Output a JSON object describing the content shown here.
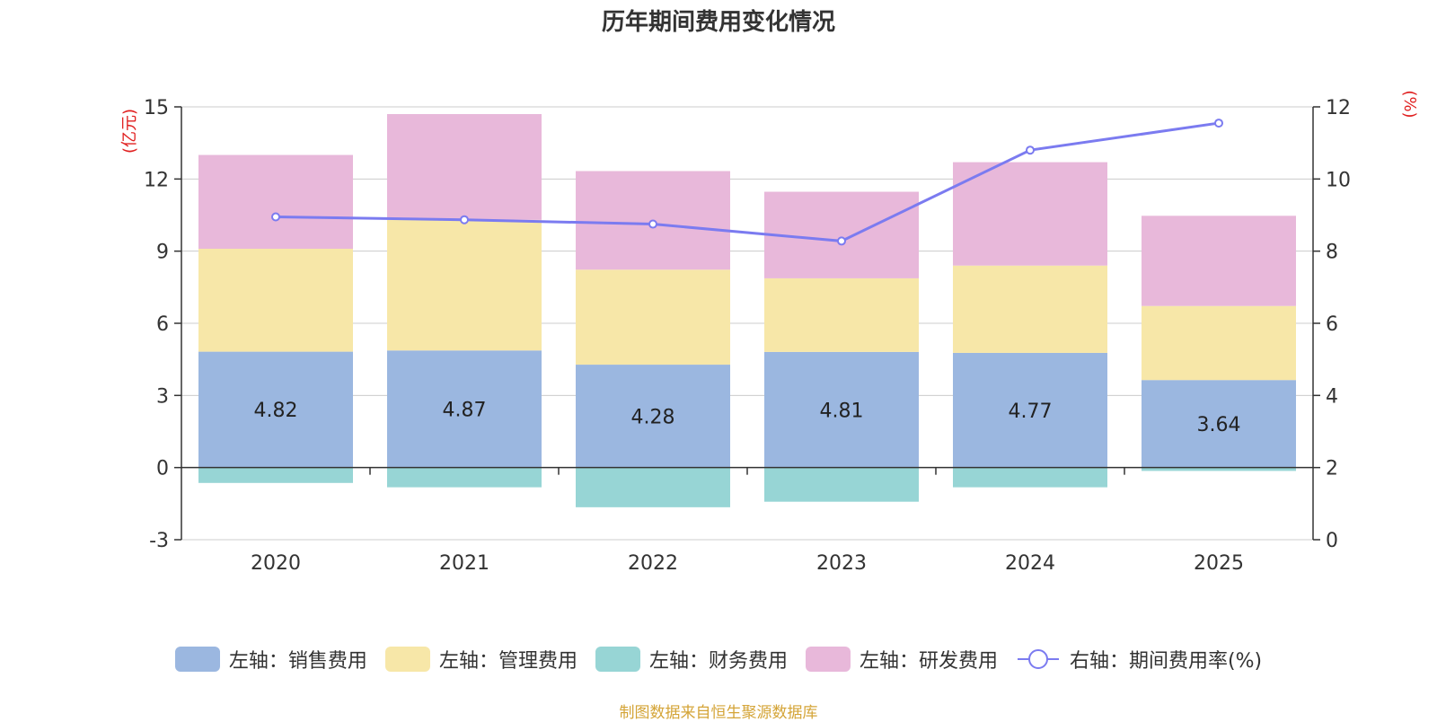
{
  "chart_data": {
    "type": "bar",
    "stacked": true,
    "title": "历年期间费用变化情况",
    "categories": [
      "2020",
      "2021",
      "2022",
      "2023",
      "2024",
      "2025"
    ],
    "series": [
      {
        "name": "左轴：销售费用",
        "axis": "left",
        "color": "#9bb7e0",
        "values": [
          4.82,
          4.87,
          4.28,
          4.81,
          4.77,
          3.64
        ],
        "labels": [
          "4.82",
          "4.87",
          "4.28",
          "4.81",
          "4.77",
          "3.64"
        ]
      },
      {
        "name": "左轴：管理费用",
        "axis": "left",
        "color": "#f7e7a8",
        "values": [
          4.28,
          5.43,
          3.95,
          3.06,
          3.63,
          3.08
        ]
      },
      {
        "name": "左轴：财务费用",
        "axis": "left",
        "color": "#97d5d5",
        "values": [
          -0.64,
          -0.82,
          -1.65,
          -1.42,
          -0.82,
          -0.14
        ]
      },
      {
        "name": "左轴：研发费用",
        "axis": "left",
        "color": "#e8b8da",
        "values": [
          3.9,
          4.4,
          4.1,
          3.6,
          4.3,
          3.75
        ]
      }
    ],
    "line_series": {
      "name": "右轴：期间费用率(%)",
      "axis": "right",
      "color": "#7b7bf0",
      "values": [
        8.95,
        8.87,
        8.75,
        8.28,
        10.8,
        11.55
      ]
    },
    "left_axis": {
      "unit": "(亿元)",
      "ylim": [
        -3,
        15
      ],
      "ticks": [
        -3,
        0,
        3,
        6,
        9,
        12,
        15
      ]
    },
    "right_axis": {
      "unit": "(%)",
      "ylim": [
        0,
        12
      ],
      "ticks": [
        0,
        2,
        4,
        6,
        8,
        10,
        12
      ]
    },
    "source": "制图数据来自恒生聚源数据库"
  }
}
